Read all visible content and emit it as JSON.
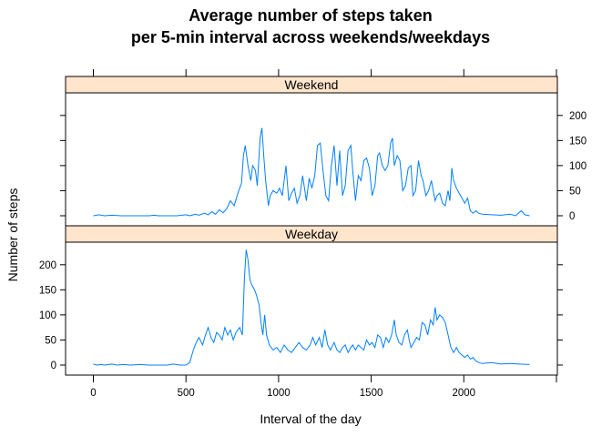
{
  "chart_data": {
    "type": "line",
    "title_line1": "Average number of steps taken",
    "title_line2": "per 5-min interval across weekends/weekdays",
    "xlabel": "Interval of the day",
    "ylabel": "Number of steps",
    "xlim": [
      -150,
      2505
    ],
    "ylim": [
      -20,
      245
    ],
    "x_ticks": [
      0,
      500,
      1000,
      1500,
      2000
    ],
    "x_tick_labels": [
      "0",
      "500",
      "1000",
      "1500",
      "2000"
    ],
    "y_ticks": [
      0,
      50,
      100,
      150,
      200
    ],
    "y_tick_labels": [
      "0",
      "50",
      "100",
      "150",
      "200"
    ],
    "line_color": "#0080ff",
    "strip_color": "#ffe5cc",
    "panels": [
      {
        "name": "Weekend",
        "y_labels_side": "right",
        "points": [
          [
            0,
            0
          ],
          [
            30,
            2
          ],
          [
            60,
            0
          ],
          [
            100,
            1
          ],
          [
            150,
            0
          ],
          [
            200,
            0
          ],
          [
            250,
            0
          ],
          [
            300,
            0
          ],
          [
            330,
            1
          ],
          [
            350,
            0
          ],
          [
            400,
            0
          ],
          [
            450,
            0
          ],
          [
            500,
            2
          ],
          [
            520,
            0
          ],
          [
            550,
            3
          ],
          [
            570,
            1
          ],
          [
            600,
            5
          ],
          [
            620,
            2
          ],
          [
            640,
            8
          ],
          [
            660,
            3
          ],
          [
            680,
            12
          ],
          [
            700,
            6
          ],
          [
            720,
            14
          ],
          [
            740,
            30
          ],
          [
            760,
            20
          ],
          [
            780,
            45
          ],
          [
            800,
            65
          ],
          [
            810,
            120
          ],
          [
            820,
            140
          ],
          [
            835,
            100
          ],
          [
            850,
            70
          ],
          [
            860,
            100
          ],
          [
            875,
            90
          ],
          [
            885,
            60
          ],
          [
            900,
            155
          ],
          [
            910,
            175
          ],
          [
            920,
            120
          ],
          [
            930,
            70
          ],
          [
            945,
            20
          ],
          [
            955,
            40
          ],
          [
            970,
            50
          ],
          [
            990,
            45
          ],
          [
            1005,
            55
          ],
          [
            1020,
            40
          ],
          [
            1040,
            100
          ],
          [
            1055,
            30
          ],
          [
            1070,
            45
          ],
          [
            1085,
            55
          ],
          [
            1100,
            25
          ],
          [
            1115,
            40
          ],
          [
            1130,
            80
          ],
          [
            1150,
            30
          ],
          [
            1165,
            75
          ],
          [
            1180,
            55
          ],
          [
            1195,
            80
          ],
          [
            1210,
            140
          ],
          [
            1225,
            145
          ],
          [
            1240,
            90
          ],
          [
            1255,
            40
          ],
          [
            1270,
            30
          ],
          [
            1285,
            100
          ],
          [
            1300,
            140
          ],
          [
            1315,
            60
          ],
          [
            1330,
            130
          ],
          [
            1345,
            40
          ],
          [
            1360,
            60
          ],
          [
            1375,
            130
          ],
          [
            1390,
            140
          ],
          [
            1400,
            90
          ],
          [
            1415,
            30
          ],
          [
            1430,
            80
          ],
          [
            1445,
            70
          ],
          [
            1460,
            110
          ],
          [
            1475,
            115
          ],
          [
            1490,
            95
          ],
          [
            1505,
            40
          ],
          [
            1520,
            60
          ],
          [
            1535,
            120
          ],
          [
            1545,
            125
          ],
          [
            1560,
            100
          ],
          [
            1575,
            90
          ],
          [
            1590,
            100
          ],
          [
            1605,
            145
          ],
          [
            1615,
            155
          ],
          [
            1625,
            100
          ],
          [
            1640,
            120
          ],
          [
            1655,
            110
          ],
          [
            1670,
            50
          ],
          [
            1685,
            60
          ],
          [
            1700,
            95
          ],
          [
            1715,
            100
          ],
          [
            1725,
            40
          ],
          [
            1740,
            50
          ],
          [
            1755,
            110
          ],
          [
            1770,
            80
          ],
          [
            1780,
            70
          ],
          [
            1795,
            40
          ],
          [
            1810,
            50
          ],
          [
            1825,
            70
          ],
          [
            1835,
            50
          ],
          [
            1845,
            30
          ],
          [
            1855,
            40
          ],
          [
            1870,
            45
          ],
          [
            1885,
            25
          ],
          [
            1900,
            20
          ],
          [
            1915,
            50
          ],
          [
            1925,
            30
          ],
          [
            1935,
            95
          ],
          [
            1945,
            70
          ],
          [
            1960,
            55
          ],
          [
            1975,
            45
          ],
          [
            1990,
            35
          ],
          [
            2005,
            25
          ],
          [
            2020,
            35
          ],
          [
            2035,
            10
          ],
          [
            2050,
            5
          ],
          [
            2065,
            10
          ],
          [
            2080,
            5
          ],
          [
            2100,
            3
          ],
          [
            2150,
            2
          ],
          [
            2200,
            1
          ],
          [
            2250,
            3
          ],
          [
            2280,
            0
          ],
          [
            2310,
            10
          ],
          [
            2330,
            2
          ],
          [
            2355,
            0
          ]
        ]
      },
      {
        "name": "Weekday",
        "y_labels_side": "left",
        "points": [
          [
            0,
            2
          ],
          [
            20,
            0
          ],
          [
            40,
            1
          ],
          [
            60,
            0
          ],
          [
            100,
            2
          ],
          [
            130,
            0
          ],
          [
            160,
            1
          ],
          [
            200,
            0
          ],
          [
            250,
            1
          ],
          [
            300,
            0
          ],
          [
            350,
            0
          ],
          [
            400,
            0
          ],
          [
            430,
            2
          ],
          [
            470,
            0
          ],
          [
            500,
            0
          ],
          [
            520,
            5
          ],
          [
            540,
            30
          ],
          [
            555,
            45
          ],
          [
            570,
            55
          ],
          [
            590,
            40
          ],
          [
            605,
            60
          ],
          [
            620,
            75
          ],
          [
            635,
            55
          ],
          [
            650,
            45
          ],
          [
            665,
            65
          ],
          [
            680,
            60
          ],
          [
            695,
            50
          ],
          [
            710,
            75
          ],
          [
            725,
            60
          ],
          [
            740,
            70
          ],
          [
            755,
            50
          ],
          [
            770,
            65
          ],
          [
            790,
            75
          ],
          [
            805,
            60
          ],
          [
            815,
            170
          ],
          [
            825,
            230
          ],
          [
            835,
            210
          ],
          [
            845,
            170
          ],
          [
            855,
            160
          ],
          [
            870,
            150
          ],
          [
            880,
            140
          ],
          [
            895,
            120
          ],
          [
            905,
            85
          ],
          [
            915,
            60
          ],
          [
            925,
            100
          ],
          [
            935,
            60
          ],
          [
            950,
            40
          ],
          [
            970,
            30
          ],
          [
            990,
            35
          ],
          [
            1010,
            25
          ],
          [
            1030,
            40
          ],
          [
            1050,
            30
          ],
          [
            1070,
            25
          ],
          [
            1090,
            35
          ],
          [
            1110,
            45
          ],
          [
            1130,
            35
          ],
          [
            1150,
            30
          ],
          [
            1170,
            40
          ],
          [
            1185,
            55
          ],
          [
            1200,
            40
          ],
          [
            1220,
            55
          ],
          [
            1235,
            35
          ],
          [
            1250,
            70
          ],
          [
            1265,
            40
          ],
          [
            1280,
            30
          ],
          [
            1300,
            45
          ],
          [
            1315,
            30
          ],
          [
            1330,
            25
          ],
          [
            1345,
            35
          ],
          [
            1360,
            40
          ],
          [
            1375,
            25
          ],
          [
            1390,
            35
          ],
          [
            1400,
            40
          ],
          [
            1415,
            30
          ],
          [
            1430,
            40
          ],
          [
            1445,
            35
          ],
          [
            1460,
            30
          ],
          [
            1475,
            50
          ],
          [
            1490,
            40
          ],
          [
            1505,
            45
          ],
          [
            1520,
            35
          ],
          [
            1535,
            60
          ],
          [
            1550,
            55
          ],
          [
            1565,
            35
          ],
          [
            1580,
            55
          ],
          [
            1595,
            45
          ],
          [
            1610,
            60
          ],
          [
            1625,
            90
          ],
          [
            1635,
            60
          ],
          [
            1650,
            45
          ],
          [
            1665,
            40
          ],
          [
            1680,
            60
          ],
          [
            1695,
            70
          ],
          [
            1705,
            50
          ],
          [
            1715,
            35
          ],
          [
            1730,
            45
          ],
          [
            1745,
            55
          ],
          [
            1760,
            50
          ],
          [
            1775,
            85
          ],
          [
            1790,
            80
          ],
          [
            1805,
            60
          ],
          [
            1820,
            90
          ],
          [
            1835,
            80
          ],
          [
            1845,
            115
          ],
          [
            1855,
            90
          ],
          [
            1870,
            100
          ],
          [
            1885,
            95
          ],
          [
            1900,
            85
          ],
          [
            1915,
            60
          ],
          [
            1930,
            35
          ],
          [
            1945,
            25
          ],
          [
            1960,
            35
          ],
          [
            1975,
            25
          ],
          [
            1990,
            20
          ],
          [
            2005,
            15
          ],
          [
            2020,
            20
          ],
          [
            2035,
            12
          ],
          [
            2050,
            15
          ],
          [
            2065,
            8
          ],
          [
            2080,
            5
          ],
          [
            2100,
            3
          ],
          [
            2150,
            5
          ],
          [
            2200,
            2
          ],
          [
            2250,
            3
          ],
          [
            2300,
            2
          ],
          [
            2355,
            1
          ]
        ]
      }
    ]
  }
}
